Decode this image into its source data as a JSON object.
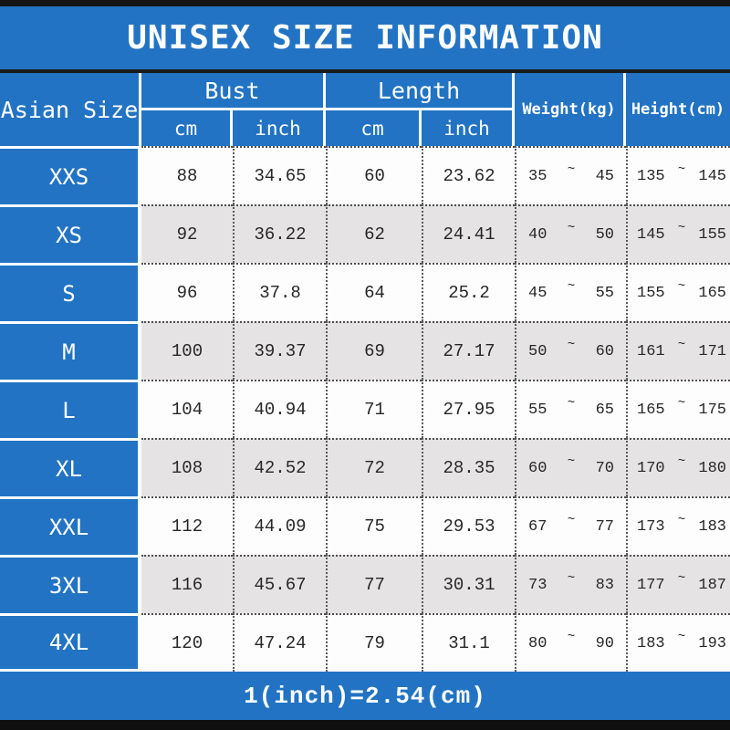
{
  "title": "UNISEX SIZE INFORMATION",
  "symbols": {
    "tilde": "~"
  },
  "colors": {
    "accent_blue": "#2273c3",
    "alt_row_gray": "#e5e3e4"
  },
  "footer": {
    "conversion_note": "1(inch)=2.54(cm)"
  },
  "table": {
    "size_col_header": "Asian Size",
    "groups": [
      {
        "label": "Bust",
        "sub": [
          "cm",
          "inch"
        ]
      },
      {
        "label": "Length",
        "sub": [
          "cm",
          "inch"
        ]
      }
    ],
    "single_headers": [
      "Weight(kg)",
      "Height(cm)"
    ],
    "rows": [
      {
        "size": "XXS",
        "bust_cm": "88",
        "bust_inch": "34.65",
        "length_cm": "60",
        "length_inch": "23.62",
        "weight_min": "35",
        "weight_max": "45",
        "height_min": "135",
        "height_max": "145"
      },
      {
        "size": "XS",
        "bust_cm": "92",
        "bust_inch": "36.22",
        "length_cm": "62",
        "length_inch": "24.41",
        "weight_min": "40",
        "weight_max": "50",
        "height_min": "145",
        "height_max": "155"
      },
      {
        "size": "S",
        "bust_cm": "96",
        "bust_inch": "37.8",
        "length_cm": "64",
        "length_inch": "25.2",
        "weight_min": "45",
        "weight_max": "55",
        "height_min": "155",
        "height_max": "165"
      },
      {
        "size": "M",
        "bust_cm": "100",
        "bust_inch": "39.37",
        "length_cm": "69",
        "length_inch": "27.17",
        "weight_min": "50",
        "weight_max": "60",
        "height_min": "161",
        "height_max": "171"
      },
      {
        "size": "L",
        "bust_cm": "104",
        "bust_inch": "40.94",
        "length_cm": "71",
        "length_inch": "27.95",
        "weight_min": "55",
        "weight_max": "65",
        "height_min": "165",
        "height_max": "175"
      },
      {
        "size": "XL",
        "bust_cm": "108",
        "bust_inch": "42.52",
        "length_cm": "72",
        "length_inch": "28.35",
        "weight_min": "60",
        "weight_max": "70",
        "height_min": "170",
        "height_max": "180"
      },
      {
        "size": "XXL",
        "bust_cm": "112",
        "bust_inch": "44.09",
        "length_cm": "75",
        "length_inch": "29.53",
        "weight_min": "67",
        "weight_max": "77",
        "height_min": "173",
        "height_max": "183"
      },
      {
        "size": "3XL",
        "bust_cm": "116",
        "bust_inch": "45.67",
        "length_cm": "77",
        "length_inch": "30.31",
        "weight_min": "73",
        "weight_max": "83",
        "height_min": "177",
        "height_max": "187"
      },
      {
        "size": "4XL",
        "bust_cm": "120",
        "bust_inch": "47.24",
        "length_cm": "79",
        "length_inch": "31.1",
        "weight_min": "80",
        "weight_max": "90",
        "height_min": "183",
        "height_max": "193"
      }
    ]
  }
}
